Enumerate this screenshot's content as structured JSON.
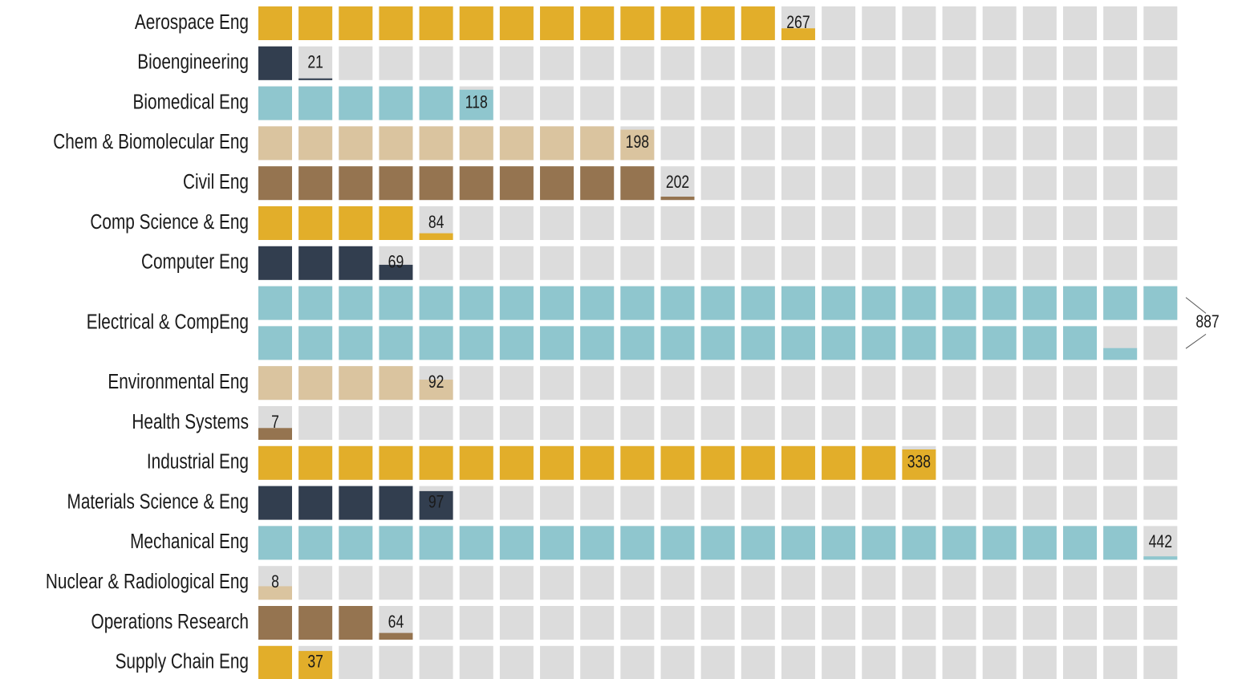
{
  "chart_data": {
    "type": "waffle",
    "categories": [
      "Aerospace Eng",
      "Bioengineering",
      "Biomedical Eng",
      "Chem & Biomolecular Eng",
      "Civil Eng",
      "Comp Science & Eng",
      "Computer Eng",
      "Electrical & CompEng",
      "Environmental Eng",
      "Health Systems",
      "Industrial Eng",
      "Materials Science & Eng",
      "Mechanical Eng",
      "Nuclear & Radiological Eng",
      "Operations Research",
      "Supply Chain Eng"
    ],
    "values": [
      267,
      21,
      118,
      198,
      202,
      84,
      69,
      887,
      92,
      7,
      338,
      97,
      442,
      8,
      64,
      37
    ],
    "colors": [
      "#e2ae2a",
      "#323e4f",
      "#8fc6ce",
      "#dac49f",
      "#957450",
      "#e2ae2a",
      "#323e4f",
      "#8fc6ce",
      "#dac49f",
      "#957450",
      "#e2ae2a",
      "#323e4f",
      "#8fc6ce",
      "#dac49f",
      "#957450",
      "#e2ae2a"
    ],
    "xlim": [
      0,
      460
    ]
  }
}
